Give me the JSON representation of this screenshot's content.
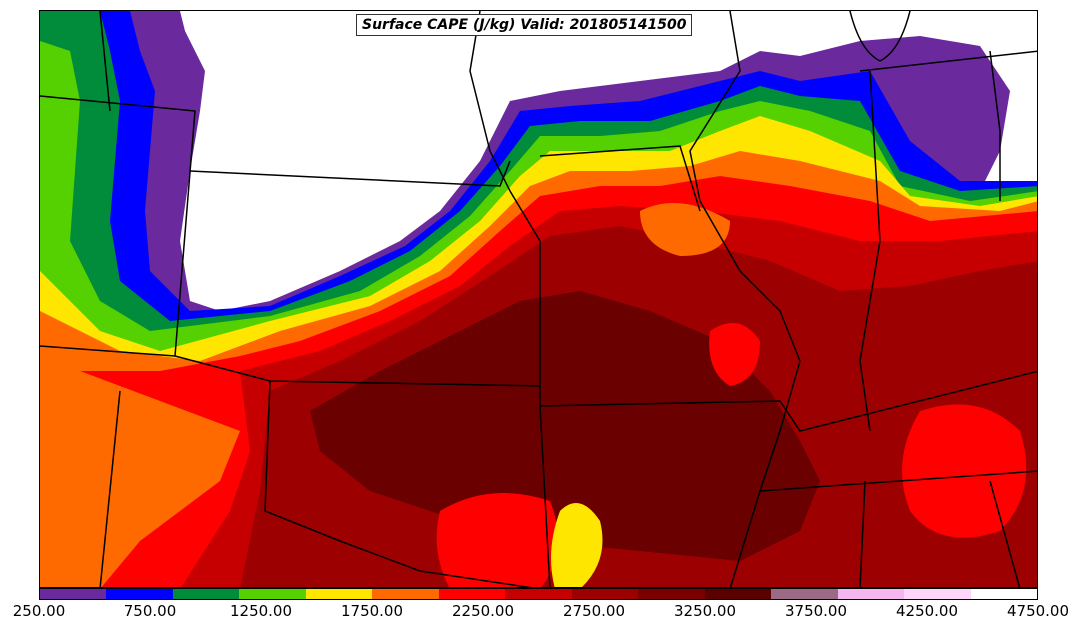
{
  "title": "Surface CAPE (J/kg) Valid: 201805141500",
  "colorbar": {
    "colors": [
      "#6a2a9e",
      "#0000ff",
      "#008c3a",
      "#55d000",
      "#ffe600",
      "#ff6a00",
      "#ff0000",
      "#c60000",
      "#9c0000",
      "#7a0000",
      "#5a0000",
      "#9a6a86",
      "#f5b6f0",
      "#ffd6fa",
      "#ffffff"
    ],
    "tick_labels": [
      "250.00",
      "750.00",
      "1250.00",
      "1750.00",
      "2250.00",
      "2750.00",
      "3250.00",
      "3750.00",
      "4250.00",
      "4750.00"
    ]
  },
  "map": {
    "background": "#ffffff",
    "boundary_color": "#000000"
  }
}
